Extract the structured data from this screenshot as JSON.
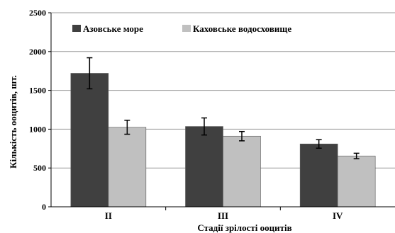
{
  "chart_data": {
    "type": "bar",
    "title": "",
    "xlabel": "Стадії зрілості ооцитів",
    "ylabel": "Кількість ооцитів, шт.",
    "categories": [
      "II",
      "III",
      "IV"
    ],
    "ylim": [
      0,
      2500
    ],
    "yticks": [
      0,
      500,
      1000,
      1500,
      2000,
      2500
    ],
    "grid": true,
    "legend_position": "top",
    "series": [
      {
        "name": "Азовське море",
        "color": "#404040",
        "values": [
          1720,
          1035,
          810
        ],
        "errors": [
          200,
          110,
          55
        ]
      },
      {
        "name": "Каховське водосховище",
        "color": "#c0c0c0",
        "values": [
          1025,
          910,
          655
        ],
        "errors": [
          90,
          60,
          35
        ]
      }
    ]
  }
}
